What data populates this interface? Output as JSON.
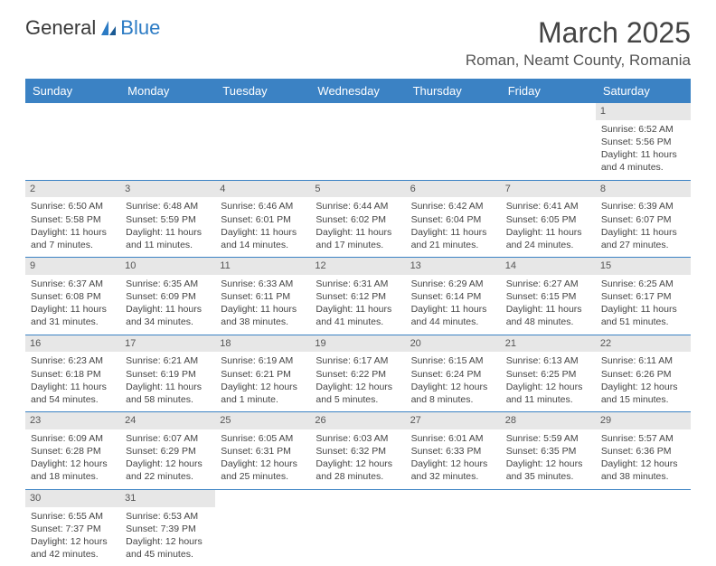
{
  "logo": {
    "part1": "General",
    "part2": "Blue"
  },
  "title": {
    "month": "March 2025",
    "location": "Roman, Neamt County, Romania"
  },
  "colors": {
    "header_bg": "#3b82c4",
    "header_fg": "#ffffff",
    "daynum_bg": "#e7e7e7",
    "text": "#444444",
    "rule": "#3b82c4"
  },
  "layout": {
    "cols": 7,
    "font_size_cell": 10.5
  },
  "days_of_week": [
    "Sunday",
    "Monday",
    "Tuesday",
    "Wednesday",
    "Thursday",
    "Friday",
    "Saturday"
  ],
  "weeks": [
    [
      {
        "empty": true
      },
      {
        "empty": true
      },
      {
        "empty": true
      },
      {
        "empty": true
      },
      {
        "empty": true
      },
      {
        "empty": true
      },
      {
        "n": "1",
        "sunrise": "Sunrise: 6:52 AM",
        "sunset": "Sunset: 5:56 PM",
        "daylight1": "Daylight: 11 hours",
        "daylight2": "and 4 minutes."
      }
    ],
    [
      {
        "n": "2",
        "sunrise": "Sunrise: 6:50 AM",
        "sunset": "Sunset: 5:58 PM",
        "daylight1": "Daylight: 11 hours",
        "daylight2": "and 7 minutes."
      },
      {
        "n": "3",
        "sunrise": "Sunrise: 6:48 AM",
        "sunset": "Sunset: 5:59 PM",
        "daylight1": "Daylight: 11 hours",
        "daylight2": "and 11 minutes."
      },
      {
        "n": "4",
        "sunrise": "Sunrise: 6:46 AM",
        "sunset": "Sunset: 6:01 PM",
        "daylight1": "Daylight: 11 hours",
        "daylight2": "and 14 minutes."
      },
      {
        "n": "5",
        "sunrise": "Sunrise: 6:44 AM",
        "sunset": "Sunset: 6:02 PM",
        "daylight1": "Daylight: 11 hours",
        "daylight2": "and 17 minutes."
      },
      {
        "n": "6",
        "sunrise": "Sunrise: 6:42 AM",
        "sunset": "Sunset: 6:04 PM",
        "daylight1": "Daylight: 11 hours",
        "daylight2": "and 21 minutes."
      },
      {
        "n": "7",
        "sunrise": "Sunrise: 6:41 AM",
        "sunset": "Sunset: 6:05 PM",
        "daylight1": "Daylight: 11 hours",
        "daylight2": "and 24 minutes."
      },
      {
        "n": "8",
        "sunrise": "Sunrise: 6:39 AM",
        "sunset": "Sunset: 6:07 PM",
        "daylight1": "Daylight: 11 hours",
        "daylight2": "and 27 minutes."
      }
    ],
    [
      {
        "n": "9",
        "sunrise": "Sunrise: 6:37 AM",
        "sunset": "Sunset: 6:08 PM",
        "daylight1": "Daylight: 11 hours",
        "daylight2": "and 31 minutes."
      },
      {
        "n": "10",
        "sunrise": "Sunrise: 6:35 AM",
        "sunset": "Sunset: 6:09 PM",
        "daylight1": "Daylight: 11 hours",
        "daylight2": "and 34 minutes."
      },
      {
        "n": "11",
        "sunrise": "Sunrise: 6:33 AM",
        "sunset": "Sunset: 6:11 PM",
        "daylight1": "Daylight: 11 hours",
        "daylight2": "and 38 minutes."
      },
      {
        "n": "12",
        "sunrise": "Sunrise: 6:31 AM",
        "sunset": "Sunset: 6:12 PM",
        "daylight1": "Daylight: 11 hours",
        "daylight2": "and 41 minutes."
      },
      {
        "n": "13",
        "sunrise": "Sunrise: 6:29 AM",
        "sunset": "Sunset: 6:14 PM",
        "daylight1": "Daylight: 11 hours",
        "daylight2": "and 44 minutes."
      },
      {
        "n": "14",
        "sunrise": "Sunrise: 6:27 AM",
        "sunset": "Sunset: 6:15 PM",
        "daylight1": "Daylight: 11 hours",
        "daylight2": "and 48 minutes."
      },
      {
        "n": "15",
        "sunrise": "Sunrise: 6:25 AM",
        "sunset": "Sunset: 6:17 PM",
        "daylight1": "Daylight: 11 hours",
        "daylight2": "and 51 minutes."
      }
    ],
    [
      {
        "n": "16",
        "sunrise": "Sunrise: 6:23 AM",
        "sunset": "Sunset: 6:18 PM",
        "daylight1": "Daylight: 11 hours",
        "daylight2": "and 54 minutes."
      },
      {
        "n": "17",
        "sunrise": "Sunrise: 6:21 AM",
        "sunset": "Sunset: 6:19 PM",
        "daylight1": "Daylight: 11 hours",
        "daylight2": "and 58 minutes."
      },
      {
        "n": "18",
        "sunrise": "Sunrise: 6:19 AM",
        "sunset": "Sunset: 6:21 PM",
        "daylight1": "Daylight: 12 hours",
        "daylight2": "and 1 minute."
      },
      {
        "n": "19",
        "sunrise": "Sunrise: 6:17 AM",
        "sunset": "Sunset: 6:22 PM",
        "daylight1": "Daylight: 12 hours",
        "daylight2": "and 5 minutes."
      },
      {
        "n": "20",
        "sunrise": "Sunrise: 6:15 AM",
        "sunset": "Sunset: 6:24 PM",
        "daylight1": "Daylight: 12 hours",
        "daylight2": "and 8 minutes."
      },
      {
        "n": "21",
        "sunrise": "Sunrise: 6:13 AM",
        "sunset": "Sunset: 6:25 PM",
        "daylight1": "Daylight: 12 hours",
        "daylight2": "and 11 minutes."
      },
      {
        "n": "22",
        "sunrise": "Sunrise: 6:11 AM",
        "sunset": "Sunset: 6:26 PM",
        "daylight1": "Daylight: 12 hours",
        "daylight2": "and 15 minutes."
      }
    ],
    [
      {
        "n": "23",
        "sunrise": "Sunrise: 6:09 AM",
        "sunset": "Sunset: 6:28 PM",
        "daylight1": "Daylight: 12 hours",
        "daylight2": "and 18 minutes."
      },
      {
        "n": "24",
        "sunrise": "Sunrise: 6:07 AM",
        "sunset": "Sunset: 6:29 PM",
        "daylight1": "Daylight: 12 hours",
        "daylight2": "and 22 minutes."
      },
      {
        "n": "25",
        "sunrise": "Sunrise: 6:05 AM",
        "sunset": "Sunset: 6:31 PM",
        "daylight1": "Daylight: 12 hours",
        "daylight2": "and 25 minutes."
      },
      {
        "n": "26",
        "sunrise": "Sunrise: 6:03 AM",
        "sunset": "Sunset: 6:32 PM",
        "daylight1": "Daylight: 12 hours",
        "daylight2": "and 28 minutes."
      },
      {
        "n": "27",
        "sunrise": "Sunrise: 6:01 AM",
        "sunset": "Sunset: 6:33 PM",
        "daylight1": "Daylight: 12 hours",
        "daylight2": "and 32 minutes."
      },
      {
        "n": "28",
        "sunrise": "Sunrise: 5:59 AM",
        "sunset": "Sunset: 6:35 PM",
        "daylight1": "Daylight: 12 hours",
        "daylight2": "and 35 minutes."
      },
      {
        "n": "29",
        "sunrise": "Sunrise: 5:57 AM",
        "sunset": "Sunset: 6:36 PM",
        "daylight1": "Daylight: 12 hours",
        "daylight2": "and 38 minutes."
      }
    ],
    [
      {
        "n": "30",
        "sunrise": "Sunrise: 6:55 AM",
        "sunset": "Sunset: 7:37 PM",
        "daylight1": "Daylight: 12 hours",
        "daylight2": "and 42 minutes."
      },
      {
        "n": "31",
        "sunrise": "Sunrise: 6:53 AM",
        "sunset": "Sunset: 7:39 PM",
        "daylight1": "Daylight: 12 hours",
        "daylight2": "and 45 minutes."
      },
      {
        "empty": true
      },
      {
        "empty": true
      },
      {
        "empty": true
      },
      {
        "empty": true
      },
      {
        "empty": true
      }
    ]
  ]
}
